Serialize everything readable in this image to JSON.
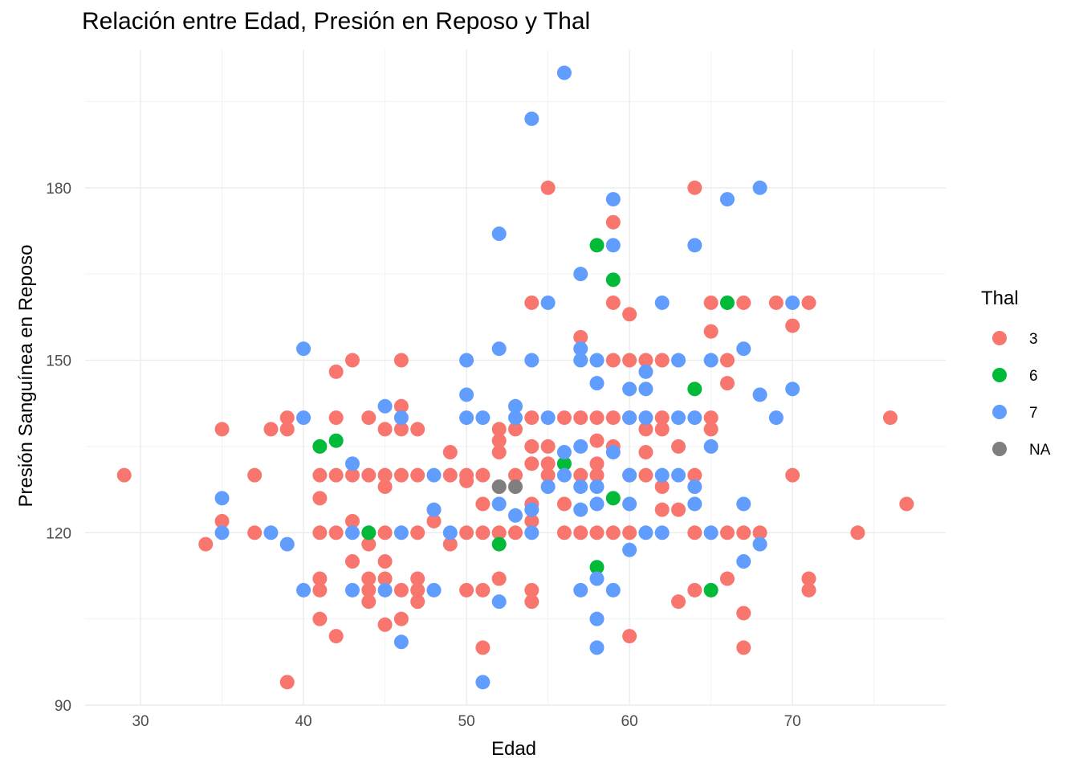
{
  "chart_data": {
    "type": "scatter",
    "title": "Relación entre Edad, Presión en Reposo y Thal",
    "xlabel": "Edad",
    "ylabel": "Presión Sanguínea en Reposo",
    "xlim": [
      26.6,
      79.4
    ],
    "ylim": [
      90,
      204
    ],
    "x_ticks": [
      30,
      40,
      50,
      60,
      70
    ],
    "y_ticks": [
      90,
      120,
      150,
      180
    ],
    "grid": true,
    "legend": {
      "title": "Thal",
      "placement": "right"
    },
    "series": [
      {
        "name": "3",
        "color": "#F8766D",
        "points": [
          [
            29,
            130
          ],
          [
            34,
            118
          ],
          [
            35,
            138
          ],
          [
            35,
            122
          ],
          [
            37,
            130
          ],
          [
            37,
            120
          ],
          [
            38,
            138
          ],
          [
            39,
            140
          ],
          [
            39,
            138
          ],
          [
            39,
            94
          ],
          [
            41,
            130
          ],
          [
            41,
            126
          ],
          [
            41,
            120
          ],
          [
            41,
            112
          ],
          [
            41,
            110
          ],
          [
            41,
            105
          ],
          [
            42,
            148
          ],
          [
            42,
            140
          ],
          [
            42,
            130
          ],
          [
            42,
            120
          ],
          [
            42,
            102
          ],
          [
            43,
            150
          ],
          [
            43,
            130
          ],
          [
            43,
            122
          ],
          [
            43,
            115
          ],
          [
            44,
            140
          ],
          [
            44,
            130
          ],
          [
            44,
            118
          ],
          [
            44,
            112
          ],
          [
            44,
            110
          ],
          [
            44,
            108
          ],
          [
            45,
            138
          ],
          [
            45,
            130
          ],
          [
            45,
            128
          ],
          [
            45,
            120
          ],
          [
            45,
            115
          ],
          [
            45,
            112
          ],
          [
            45,
            104
          ],
          [
            46,
            150
          ],
          [
            46,
            142
          ],
          [
            46,
            138
          ],
          [
            46,
            130
          ],
          [
            46,
            110
          ],
          [
            46,
            105
          ],
          [
            47,
            138
          ],
          [
            47,
            130
          ],
          [
            47,
            120
          ],
          [
            47,
            112
          ],
          [
            47,
            110
          ],
          [
            47,
            108
          ],
          [
            48,
            122
          ],
          [
            49,
            134
          ],
          [
            49,
            130
          ],
          [
            49,
            118
          ],
          [
            50,
            130
          ],
          [
            50,
            129
          ],
          [
            50,
            120
          ],
          [
            50,
            110
          ],
          [
            51,
            130
          ],
          [
            51,
            125
          ],
          [
            51,
            120
          ],
          [
            51,
            110
          ],
          [
            51,
            100
          ],
          [
            52,
            138
          ],
          [
            52,
            136
          ],
          [
            52,
            134
          ],
          [
            52,
            128
          ],
          [
            52,
            120
          ],
          [
            52,
            112
          ],
          [
            53,
            138
          ],
          [
            53,
            130
          ],
          [
            53,
            120
          ],
          [
            54,
            140
          ],
          [
            54,
            135
          ],
          [
            54,
            132
          ],
          [
            54,
            125
          ],
          [
            54,
            122
          ],
          [
            54,
            110
          ],
          [
            54,
            108
          ],
          [
            54,
            160
          ],
          [
            55,
            180
          ],
          [
            55,
            135
          ],
          [
            55,
            132
          ],
          [
            55,
            130
          ],
          [
            56,
            140
          ],
          [
            56,
            125
          ],
          [
            56,
            120
          ],
          [
            57,
            154
          ],
          [
            57,
            140
          ],
          [
            57,
            130
          ],
          [
            57,
            120
          ],
          [
            58,
            140
          ],
          [
            58,
            136
          ],
          [
            58,
            132
          ],
          [
            58,
            130
          ],
          [
            58,
            120
          ],
          [
            59,
            174
          ],
          [
            59,
            160
          ],
          [
            59,
            150
          ],
          [
            59,
            140
          ],
          [
            59,
            135
          ],
          [
            59,
            120
          ],
          [
            60,
            158
          ],
          [
            60,
            150
          ],
          [
            60,
            140
          ],
          [
            60,
            130
          ],
          [
            60,
            120
          ],
          [
            60,
            102
          ],
          [
            61,
            150
          ],
          [
            61,
            138
          ],
          [
            61,
            134
          ],
          [
            61,
            130
          ],
          [
            62,
            150
          ],
          [
            62,
            140
          ],
          [
            62,
            138
          ],
          [
            62,
            128
          ],
          [
            62,
            124
          ],
          [
            63,
            135
          ],
          [
            63,
            124
          ],
          [
            63,
            108
          ],
          [
            64,
            180
          ],
          [
            64,
            130
          ],
          [
            64,
            120
          ],
          [
            64,
            110
          ],
          [
            65,
            160
          ],
          [
            65,
            155
          ],
          [
            65,
            140
          ],
          [
            65,
            138
          ],
          [
            66,
            150
          ],
          [
            66,
            146
          ],
          [
            66,
            120
          ],
          [
            66,
            112
          ],
          [
            67,
            160
          ],
          [
            67,
            120
          ],
          [
            67,
            106
          ],
          [
            67,
            100
          ],
          [
            68,
            120
          ],
          [
            69,
            160
          ],
          [
            70,
            156
          ],
          [
            70,
            130
          ],
          [
            71,
            160
          ],
          [
            71,
            112
          ],
          [
            71,
            110
          ],
          [
            74,
            120
          ],
          [
            76,
            140
          ],
          [
            77,
            125
          ]
        ]
      },
      {
        "name": "6",
        "color": "#00BA38",
        "points": [
          [
            41,
            135
          ],
          [
            42,
            136
          ],
          [
            44,
            120
          ],
          [
            52,
            118
          ],
          [
            56,
            132
          ],
          [
            58,
            170
          ],
          [
            58,
            114
          ],
          [
            59,
            164
          ],
          [
            59,
            126
          ],
          [
            64,
            145
          ],
          [
            65,
            110
          ],
          [
            66,
            160
          ]
        ]
      },
      {
        "name": "7",
        "color": "#619CFF",
        "points": [
          [
            35,
            126
          ],
          [
            35,
            120
          ],
          [
            38,
            120
          ],
          [
            39,
            118
          ],
          [
            40,
            152
          ],
          [
            40,
            140
          ],
          [
            40,
            110
          ],
          [
            43,
            132
          ],
          [
            43,
            120
          ],
          [
            43,
            110
          ],
          [
            45,
            142
          ],
          [
            45,
            110
          ],
          [
            46,
            140
          ],
          [
            46,
            120
          ],
          [
            46,
            101
          ],
          [
            48,
            130
          ],
          [
            48,
            124
          ],
          [
            48,
            110
          ],
          [
            49,
            120
          ],
          [
            50,
            150
          ],
          [
            50,
            144
          ],
          [
            50,
            140
          ],
          [
            51,
            140
          ],
          [
            51,
            94
          ],
          [
            52,
            172
          ],
          [
            52,
            152
          ],
          [
            52,
            125
          ],
          [
            52,
            108
          ],
          [
            53,
            142
          ],
          [
            53,
            140
          ],
          [
            53,
            123
          ],
          [
            54,
            192
          ],
          [
            54,
            150
          ],
          [
            54,
            124
          ],
          [
            54,
            120
          ],
          [
            55,
            160
          ],
          [
            55,
            140
          ],
          [
            55,
            128
          ],
          [
            56,
            200
          ],
          [
            56,
            134
          ],
          [
            56,
            130
          ],
          [
            57,
            165
          ],
          [
            57,
            152
          ],
          [
            57,
            150
          ],
          [
            57,
            135
          ],
          [
            57,
            128
          ],
          [
            57,
            124
          ],
          [
            57,
            110
          ],
          [
            58,
            150
          ],
          [
            58,
            146
          ],
          [
            58,
            128
          ],
          [
            58,
            125
          ],
          [
            58,
            112
          ],
          [
            58,
            105
          ],
          [
            58,
            100
          ],
          [
            59,
            178
          ],
          [
            59,
            170
          ],
          [
            59,
            134
          ],
          [
            59,
            110
          ],
          [
            60,
            145
          ],
          [
            60,
            140
          ],
          [
            60,
            130
          ],
          [
            60,
            125
          ],
          [
            60,
            117
          ],
          [
            61,
            148
          ],
          [
            61,
            145
          ],
          [
            61,
            140
          ],
          [
            61,
            120
          ],
          [
            62,
            160
          ],
          [
            62,
            130
          ],
          [
            62,
            120
          ],
          [
            63,
            150
          ],
          [
            63,
            140
          ],
          [
            63,
            130
          ],
          [
            64,
            170
          ],
          [
            64,
            140
          ],
          [
            64,
            128
          ],
          [
            64,
            125
          ],
          [
            65,
            150
          ],
          [
            65,
            135
          ],
          [
            65,
            120
          ],
          [
            66,
            178
          ],
          [
            67,
            152
          ],
          [
            67,
            125
          ],
          [
            67,
            115
          ],
          [
            68,
            180
          ],
          [
            68,
            144
          ],
          [
            68,
            118
          ],
          [
            69,
            140
          ],
          [
            70,
            160
          ],
          [
            70,
            145
          ]
        ]
      },
      {
        "name": "NA",
        "color": "#7F7F7F",
        "points": [
          [
            52,
            128
          ],
          [
            53,
            128
          ]
        ]
      }
    ]
  }
}
